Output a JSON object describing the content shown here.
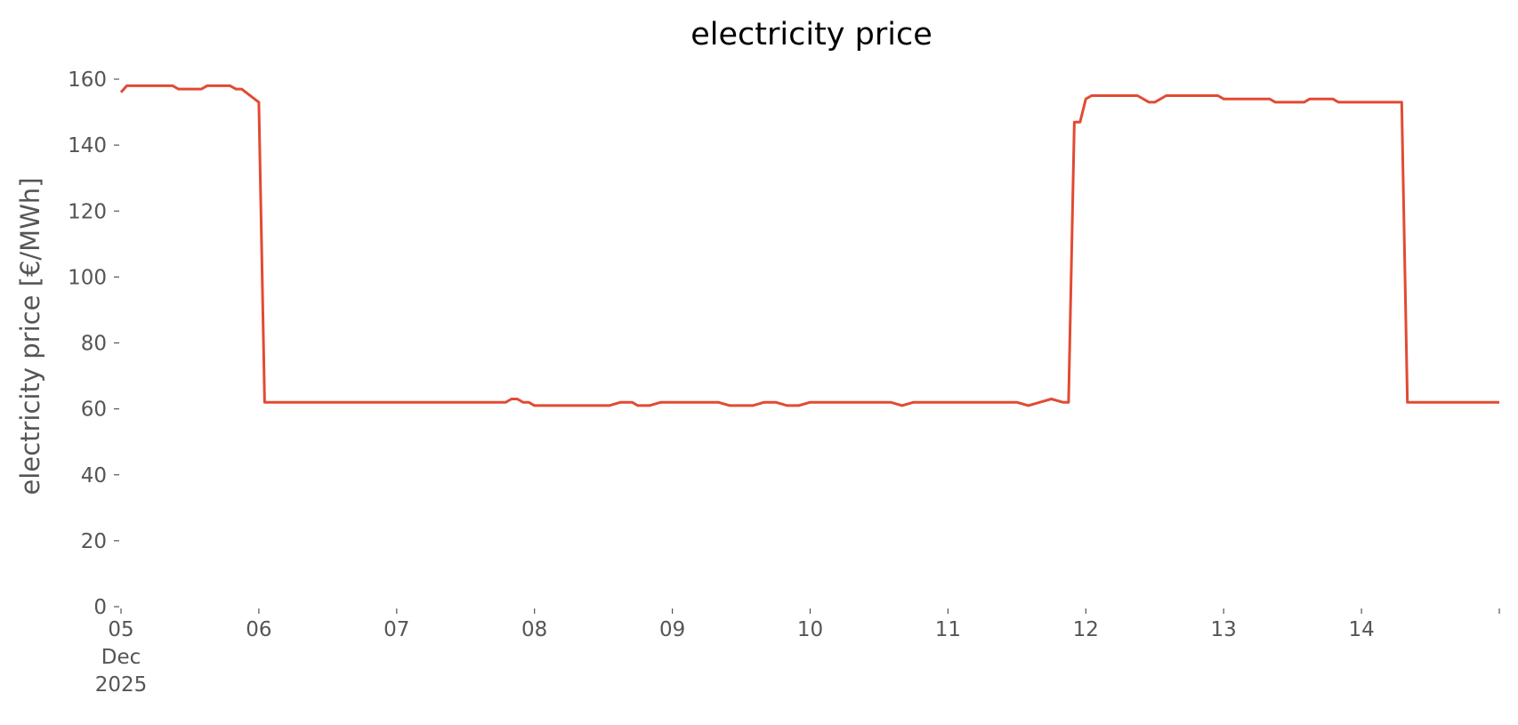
{
  "chart_data": {
    "type": "line",
    "title": "electricity price",
    "xlabel": "",
    "ylabel": "electricity price [€/MWh]",
    "ylim": [
      0,
      160
    ],
    "y_ticks": [
      "0",
      "20",
      "40",
      "60",
      "80",
      "100",
      "120",
      "140",
      "160"
    ],
    "x_ticks": [
      {
        "x": "2025-12-05",
        "lines": [
          "05",
          "Dec",
          "2025"
        ]
      },
      {
        "x": "2025-12-06",
        "lines": [
          "06"
        ]
      },
      {
        "x": "2025-12-07",
        "lines": [
          "07"
        ]
      },
      {
        "x": "2025-12-08",
        "lines": [
          "08"
        ]
      },
      {
        "x": "2025-12-09",
        "lines": [
          "09"
        ]
      },
      {
        "x": "2025-12-10",
        "lines": [
          "10"
        ]
      },
      {
        "x": "2025-12-11",
        "lines": [
          "11"
        ]
      },
      {
        "x": "2025-12-12",
        "lines": [
          "12"
        ]
      },
      {
        "x": "2025-12-13",
        "lines": [
          "13"
        ]
      },
      {
        "x": "2025-12-14",
        "lines": [
          "14"
        ]
      },
      {
        "x": "2025-12-15",
        "lines": [
          ""
        ]
      }
    ],
    "xlim": [
      "2025-12-05T00:00",
      "2025-12-15T00:00"
    ],
    "grid": false,
    "colors": {
      "line": "#e24a33",
      "text": "#555555"
    },
    "series": [
      {
        "x": [
          "2025-12-05T00:00",
          "2025-12-05T01:00",
          "2025-12-05T02:00",
          "2025-12-05T09:00",
          "2025-12-05T10:00",
          "2025-12-05T14:00",
          "2025-12-05T15:00",
          "2025-12-05T19:00",
          "2025-12-05T20:00",
          "2025-12-05T21:00",
          "2025-12-06T00:00",
          "2025-12-06T01:00",
          "2025-12-06T12:00",
          "2025-12-06T23:00",
          "2025-12-07T00:00",
          "2025-12-07T18:00",
          "2025-12-07T19:00",
          "2025-12-07T20:00",
          "2025-12-07T21:00",
          "2025-12-07T22:00",
          "2025-12-07T23:00",
          "2025-12-08T00:00",
          "2025-12-08T09:00",
          "2025-12-08T10:00",
          "2025-12-08T12:00",
          "2025-12-08T13:00",
          "2025-12-08T15:00",
          "2025-12-08T17:00",
          "2025-12-08T18:00",
          "2025-12-08T20:00",
          "2025-12-08T22:00",
          "2025-12-09T00:00",
          "2025-12-09T08:00",
          "2025-12-09T10:00",
          "2025-12-09T14:00",
          "2025-12-09T16:00",
          "2025-12-09T18:00",
          "2025-12-09T20:00",
          "2025-12-09T22:00",
          "2025-12-10T00:00",
          "2025-12-10T14:00",
          "2025-12-10T16:00",
          "2025-12-10T18:00",
          "2025-12-10T20:00",
          "2025-12-11T00:00",
          "2025-12-11T02:00",
          "2025-12-11T11:00",
          "2025-12-11T12:00",
          "2025-12-11T14:00",
          "2025-12-11T16:00",
          "2025-12-11T18:00",
          "2025-12-11T20:00",
          "2025-12-11T21:00",
          "2025-12-11T22:00",
          "2025-12-11T23:00",
          "2025-12-12T00:00",
          "2025-12-12T01:00",
          "2025-12-12T02:00",
          "2025-12-12T09:00",
          "2025-12-12T11:00",
          "2025-12-12T12:00",
          "2025-12-12T14:00",
          "2025-12-12T15:00",
          "2025-12-12T16:00",
          "2025-12-12T17:00",
          "2025-12-12T23:00",
          "2025-12-13T00:00",
          "2025-12-13T08:00",
          "2025-12-13T09:00",
          "2025-12-13T14:00",
          "2025-12-13T15:00",
          "2025-12-13T19:00",
          "2025-12-13T20:00",
          "2025-12-14T07:00",
          "2025-12-14T08:00",
          "2025-12-14T20:00",
          "2025-12-15T00:00"
        ],
        "values": [
          156,
          158,
          158,
          158,
          157,
          157,
          158,
          158,
          157,
          157,
          153,
          62,
          62,
          62,
          62,
          62,
          62,
          63,
          63,
          62,
          62,
          61,
          61,
          61,
          61,
          61,
          62,
          62,
          61,
          61,
          62,
          62,
          62,
          61,
          61,
          62,
          62,
          61,
          61,
          62,
          62,
          61,
          62,
          62,
          62,
          62,
          62,
          62,
          61,
          62,
          63,
          62,
          62,
          147,
          147,
          154,
          155,
          155,
          155,
          153,
          153,
          155,
          155,
          155,
          155,
          155,
          154,
          154,
          153,
          153,
          154,
          154,
          153,
          153,
          62,
          62,
          62
        ]
      }
    ]
  }
}
